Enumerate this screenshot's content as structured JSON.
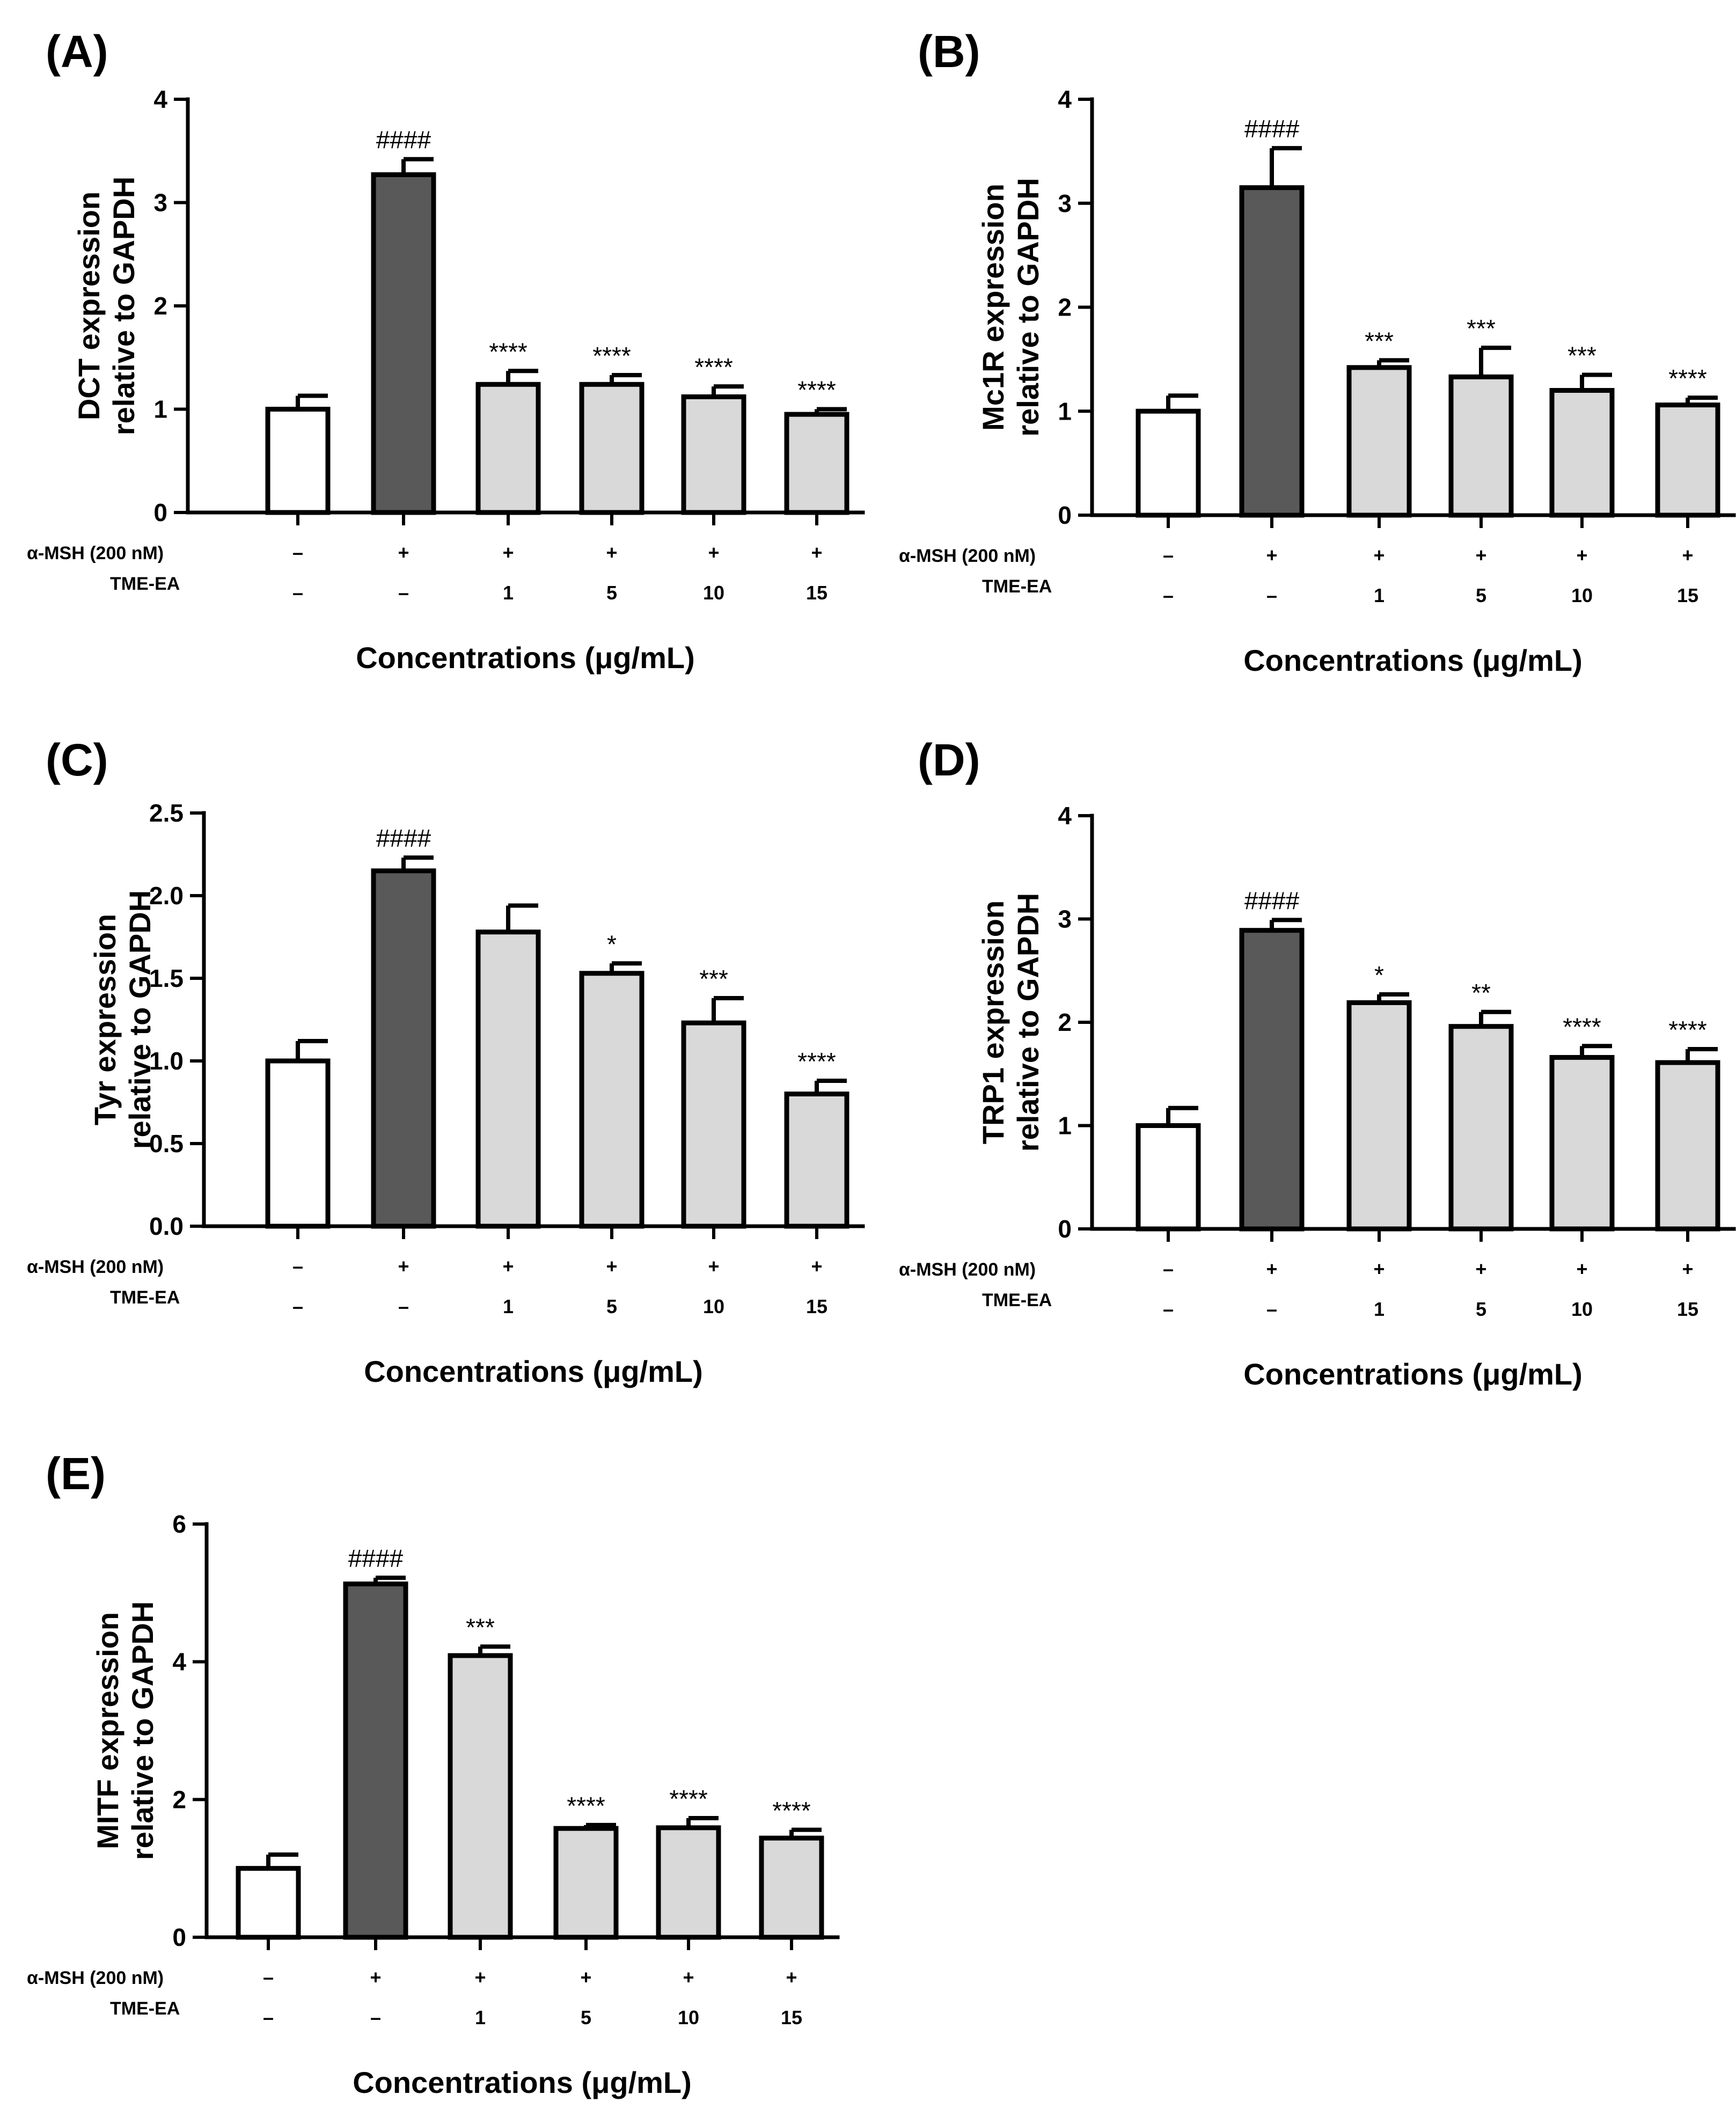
{
  "colors": {
    "control": "#ffffff",
    "msh": "#595959",
    "tme": "#d9d9d9",
    "stroke": "#000000"
  },
  "treatment_rows": {
    "msh_label": "α-MSH (200 nM)",
    "tme_label": "TME-EA",
    "msh_values": [
      "–",
      "+",
      "+",
      "+",
      "+",
      "+"
    ],
    "tme_values": [
      "–",
      "–",
      "1",
      "5",
      "10",
      "15"
    ]
  },
  "chart_data": [
    {
      "type": "bar",
      "panel": "(A)",
      "ylabel": [
        "DCT expression",
        "relative to GAPDH"
      ],
      "xlabel": "Concentrations (μg/mL)",
      "ylim": [
        0,
        4
      ],
      "yticks": [
        0,
        1,
        2,
        3,
        4
      ],
      "ytick_labels": [
        "0",
        "1",
        "2",
        "3",
        "4"
      ],
      "values": [
        1.0,
        3.27,
        1.24,
        1.24,
        1.12,
        0.95
      ],
      "errors": [
        0.13,
        0.15,
        0.13,
        0.09,
        0.1,
        0.05
      ],
      "significance": [
        "",
        "####",
        "****",
        "****",
        "****",
        "****"
      ]
    },
    {
      "type": "bar",
      "panel": "(B)",
      "ylabel": [
        "Mc1R expression",
        "relative to GAPDH"
      ],
      "xlabel": "Concentrations (μg/mL)",
      "ylim": [
        0,
        4
      ],
      "yticks": [
        0,
        1,
        2,
        3,
        4
      ],
      "ytick_labels": [
        "0",
        "1",
        "2",
        "3",
        "4"
      ],
      "values": [
        1.0,
        3.15,
        1.42,
        1.33,
        1.2,
        1.06
      ],
      "errors": [
        0.15,
        0.38,
        0.07,
        0.28,
        0.15,
        0.07
      ],
      "significance": [
        "",
        "####",
        "***",
        "***",
        "***",
        "****"
      ]
    },
    {
      "type": "bar",
      "panel": "(C)",
      "ylabel": [
        "Tyr expression",
        "relative to GAPDH"
      ],
      "xlabel": "Concentrations (μg/mL)",
      "ylim": [
        0,
        2.5
      ],
      "yticks": [
        0,
        0.5,
        1,
        1.5,
        2,
        2.5
      ],
      "ytick_labels": [
        "0.0",
        "0.5",
        "1.0",
        "1.5",
        "2.0",
        "2.5"
      ],
      "values": [
        1.0,
        2.15,
        1.78,
        1.53,
        1.23,
        0.8
      ],
      "errors": [
        0.12,
        0.08,
        0.16,
        0.06,
        0.15,
        0.08
      ],
      "significance": [
        "",
        "####",
        "",
        "*",
        "***",
        "****"
      ]
    },
    {
      "type": "bar",
      "panel": "(D)",
      "ylabel": [
        "TRP1 expression",
        "relative to GAPDH"
      ],
      "xlabel": "Concentrations (μg/mL)",
      "ylim": [
        0,
        4
      ],
      "yticks": [
        0,
        1,
        2,
        3,
        4
      ],
      "ytick_labels": [
        "0",
        "1",
        "2",
        "3",
        "4"
      ],
      "values": [
        1.0,
        2.89,
        2.19,
        1.96,
        1.66,
        1.61
      ],
      "errors": [
        0.17,
        0.1,
        0.08,
        0.14,
        0.11,
        0.13
      ],
      "significance": [
        "",
        "####",
        "*",
        "**",
        "****",
        "****"
      ]
    },
    {
      "type": "bar",
      "panel": "(E)",
      "ylabel": [
        "MITF expression",
        "relative to GAPDH"
      ],
      "xlabel": "Concentrations (μg/mL)",
      "ylim": [
        0,
        6
      ],
      "yticks": [
        0,
        2,
        4,
        6
      ],
      "ytick_labels": [
        "0",
        "2",
        "4",
        "6"
      ],
      "values": [
        1.0,
        5.13,
        4.09,
        1.58,
        1.59,
        1.44
      ],
      "errors": [
        0.2,
        0.09,
        0.13,
        0.05,
        0.14,
        0.12
      ],
      "significance": [
        "",
        "####",
        "***",
        "****",
        "****",
        "****"
      ]
    }
  ]
}
